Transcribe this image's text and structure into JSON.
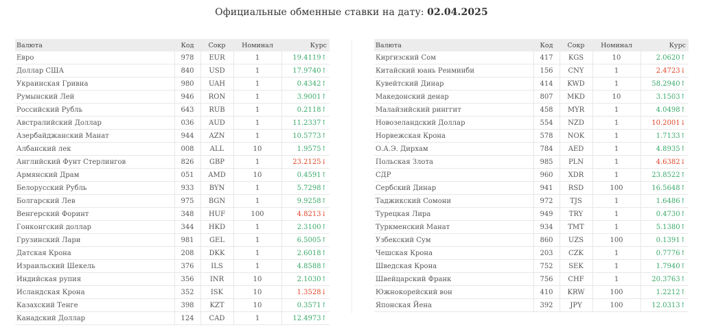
{
  "page": {
    "title_prefix": "Официальные обменные ставки на дату:",
    "title_date": "02.04.2025"
  },
  "headers": {
    "currency": "Валюта",
    "code": "Код",
    "abbr": "Сокр",
    "nominal": "Номинал",
    "rate": "Курс"
  },
  "colors": {
    "up": "#3aaa6a",
    "down": "#e2462a"
  },
  "left_rows": [
    {
      "name": "Евро",
      "code": "978",
      "abbr": "EUR",
      "nominal": "1",
      "rate": "19.4119↑",
      "trend": "up"
    },
    {
      "name": "Доллар США",
      "code": "840",
      "abbr": "USD",
      "nominal": "1",
      "rate": "17.9740↑",
      "trend": "up"
    },
    {
      "name": "Украинская Гривна",
      "code": "980",
      "abbr": "UAH",
      "nominal": "1",
      "rate": "0.4342↑",
      "trend": "up"
    },
    {
      "name": "Румынский Лей",
      "code": "946",
      "abbr": "RON",
      "nominal": "1",
      "rate": "3.9001↑",
      "trend": "up"
    },
    {
      "name": "Российский Рубль",
      "code": "643",
      "abbr": "RUB",
      "nominal": "1",
      "rate": "0.2118↑",
      "trend": "up"
    },
    {
      "name": "Австралийский Доллар",
      "code": "036",
      "abbr": "AUD",
      "nominal": "1",
      "rate": "11.2337↑",
      "trend": "up"
    },
    {
      "name": "Азербайджанский Манат",
      "code": "944",
      "abbr": "AZN",
      "nominal": "1",
      "rate": "10.5773↑",
      "trend": "up"
    },
    {
      "name": "Албанский лек",
      "code": "008",
      "abbr": "ALL",
      "nominal": "10",
      "rate": "1.9575↑",
      "trend": "up"
    },
    {
      "name": "Английский Фунт Стерлингов",
      "code": "826",
      "abbr": "GBP",
      "nominal": "1",
      "rate": "23.2125↓",
      "trend": "down"
    },
    {
      "name": "Армянский Драм",
      "code": "051",
      "abbr": "AMD",
      "nominal": "10",
      "rate": "0.4591↑",
      "trend": "up"
    },
    {
      "name": "Белорусский Рубль",
      "code": "933",
      "abbr": "BYN",
      "nominal": "1",
      "rate": "5.7298↑",
      "trend": "up"
    },
    {
      "name": "Болгарский Лев",
      "code": "975",
      "abbr": "BGN",
      "nominal": "1",
      "rate": "9.9258↑",
      "trend": "up"
    },
    {
      "name": "Венгерский Форинт",
      "code": "348",
      "abbr": "HUF",
      "nominal": "100",
      "rate": "4.8213↓",
      "trend": "down"
    },
    {
      "name": "Гонконгский доллар",
      "code": "344",
      "abbr": "HKD",
      "nominal": "1",
      "rate": "2.3100↑",
      "trend": "up"
    },
    {
      "name": "Грузинский Лари",
      "code": "981",
      "abbr": "GEL",
      "nominal": "1",
      "rate": "6.5005↑",
      "trend": "up"
    },
    {
      "name": "Датская Крона",
      "code": "208",
      "abbr": "DKK",
      "nominal": "1",
      "rate": "2.6018↑",
      "trend": "up"
    },
    {
      "name": "Израильский Шекель",
      "code": "376",
      "abbr": "ILS",
      "nominal": "1",
      "rate": "4.8588↑",
      "trend": "up"
    },
    {
      "name": "Индийская рупия",
      "code": "356",
      "abbr": "INR",
      "nominal": "10",
      "rate": "2.1030↑",
      "trend": "up"
    },
    {
      "name": "Исландская Крона",
      "code": "352",
      "abbr": "ISK",
      "nominal": "10",
      "rate": "1.3528↓",
      "trend": "down"
    },
    {
      "name": "Казахский Тенге",
      "code": "398",
      "abbr": "KZT",
      "nominal": "10",
      "rate": "0.3571↑",
      "trend": "up"
    },
    {
      "name": "Канадский Доллар",
      "code": "124",
      "abbr": "CAD",
      "nominal": "1",
      "rate": "12.4973↑",
      "trend": "up"
    }
  ],
  "right_rows": [
    {
      "name": "Киргизский Сом",
      "code": "417",
      "abbr": "KGS",
      "nominal": "10",
      "rate": "2.0620↑",
      "trend": "up"
    },
    {
      "name": "Китайский юань Ренминби",
      "code": "156",
      "abbr": "CNY",
      "nominal": "1",
      "rate": "2.4723↓",
      "trend": "down"
    },
    {
      "name": "Кувейтский Динар",
      "code": "414",
      "abbr": "KWD",
      "nominal": "1",
      "rate": "58.2940↑",
      "trend": "up"
    },
    {
      "name": "Македонский денар",
      "code": "807",
      "abbr": "MKD",
      "nominal": "10",
      "rate": "3.1503↑",
      "trend": "up"
    },
    {
      "name": "Малайзийский ринггит",
      "code": "458",
      "abbr": "MYR",
      "nominal": "1",
      "rate": "4.0498↑",
      "trend": "up"
    },
    {
      "name": "Новозеландский Доллар",
      "code": "554",
      "abbr": "NZD",
      "nominal": "1",
      "rate": "10.2001↓",
      "trend": "down"
    },
    {
      "name": "Норвежская Крона",
      "code": "578",
      "abbr": "NOK",
      "nominal": "1",
      "rate": "1.7133↑",
      "trend": "up"
    },
    {
      "name": "О.А.Э. Дирхам",
      "code": "784",
      "abbr": "AED",
      "nominal": "1",
      "rate": "4.8935↑",
      "trend": "up"
    },
    {
      "name": "Польская Злота",
      "code": "985",
      "abbr": "PLN",
      "nominal": "1",
      "rate": "4.6382↓",
      "trend": "down"
    },
    {
      "name": "СДР",
      "code": "960",
      "abbr": "XDR",
      "nominal": "1",
      "rate": "23.8522↑",
      "trend": "up"
    },
    {
      "name": "Сербский Динар",
      "code": "941",
      "abbr": "RSD",
      "nominal": "100",
      "rate": "16.5648↑",
      "trend": "up"
    },
    {
      "name": "Таджикский Сомони",
      "code": "972",
      "abbr": "TJS",
      "nominal": "1",
      "rate": "1.6486↑",
      "trend": "up"
    },
    {
      "name": "Турецкая Лира",
      "code": "949",
      "abbr": "TRY",
      "nominal": "1",
      "rate": "0.4730↑",
      "trend": "up"
    },
    {
      "name": "Туркменский Манат",
      "code": "934",
      "abbr": "TMT",
      "nominal": "1",
      "rate": "5.1380↑",
      "trend": "up"
    },
    {
      "name": "Узбекский Сум",
      "code": "860",
      "abbr": "UZS",
      "nominal": "100",
      "rate": "0.1391↑",
      "trend": "up"
    },
    {
      "name": "Чешская Крона",
      "code": "203",
      "abbr": "CZK",
      "nominal": "1",
      "rate": "0.7776↑",
      "trend": "up"
    },
    {
      "name": "Шведская Крона",
      "code": "752",
      "abbr": "SEK",
      "nominal": "1",
      "rate": "1.7940↑",
      "trend": "up"
    },
    {
      "name": "Швейцарский Франк",
      "code": "756",
      "abbr": "CHF",
      "nominal": "1",
      "rate": "20.3763↑",
      "trend": "up"
    },
    {
      "name": "Южнокорейский вон",
      "code": "410",
      "abbr": "KRW",
      "nominal": "100",
      "rate": "1.2212↑",
      "trend": "up"
    },
    {
      "name": "Японская Йена",
      "code": "392",
      "abbr": "JPY",
      "nominal": "100",
      "rate": "12.0313↑",
      "trend": "up"
    }
  ]
}
